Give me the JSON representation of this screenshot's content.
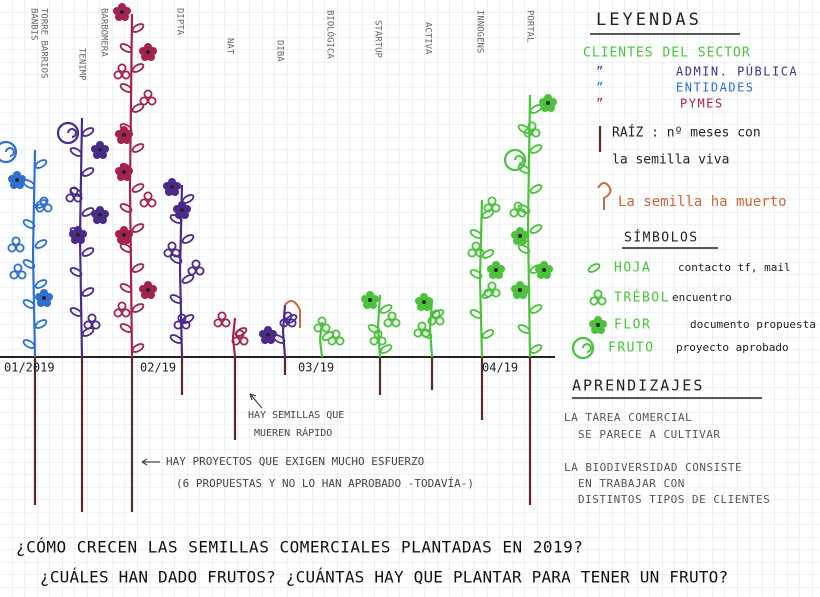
{
  "column_labels": [
    "BANBIS",
    "TORRE BARRIOS",
    "TENIMP",
    "BARBOMERA",
    "DIPTA",
    "NAT",
    "DIBA",
    "BIOLÓGICA",
    "STARTUP",
    "ACTIVA",
    "INNOGENS",
    "PORTAL"
  ],
  "timeline": [
    "01/2019",
    "02/19",
    "03/19",
    "04/19"
  ],
  "legend": {
    "title": "LEYENDAS",
    "clients_header": "CLIENTES DEL SECTOR",
    "sectors": [
      "ADMIN. PÚBLICA",
      "ENTIDADES",
      "PYMES"
    ],
    "root": [
      "RAÍZ : nº meses con",
      "la semilla viva"
    ],
    "dead": "La semilla ha muerto",
    "symbols_title": "SÍMBOLOS",
    "symbols": [
      {
        "name": "HOJA",
        "meaning": "contacto tf, mail"
      },
      {
        "name": "TRÉBOL",
        "meaning": "encuentro"
      },
      {
        "name": "FLOR",
        "meaning": "documento propuesta"
      },
      {
        "name": "FRUTO",
        "meaning": "proyecto aprobado"
      }
    ]
  },
  "learnings": {
    "title": "APRENDIZAJES",
    "items": [
      [
        "LA TAREA COMERCIAL",
        "SE PARECE A CULTIVAR"
      ],
      [
        "LA BIODIVERSIDAD CONSISTE",
        "EN TRABAJAR CON",
        "DISTINTOS TIPOS DE CLIENTES"
      ]
    ]
  },
  "annotations": {
    "dead_fast": [
      "HAY SEMILLAS QUE",
      "MUEREN RÁPIDO"
    ],
    "effort": [
      "HAY PROYECTOS QUE EXIGEN MUCHO ESFUERZO",
      "(6 PROPUESTAS Y NO LO HAN APROBADO -TODAVÍA-)"
    ]
  },
  "questions": [
    "¿CÓMO CRECEN LAS SEMILLAS COMERCIALES PLANTADAS EN 2019?",
    "¿CUÁLES HAN DADO FRUTOS? ¿CUÁNTAS HAY QUE PLANTAR PARA TENER UN FRUTO?"
  ]
}
